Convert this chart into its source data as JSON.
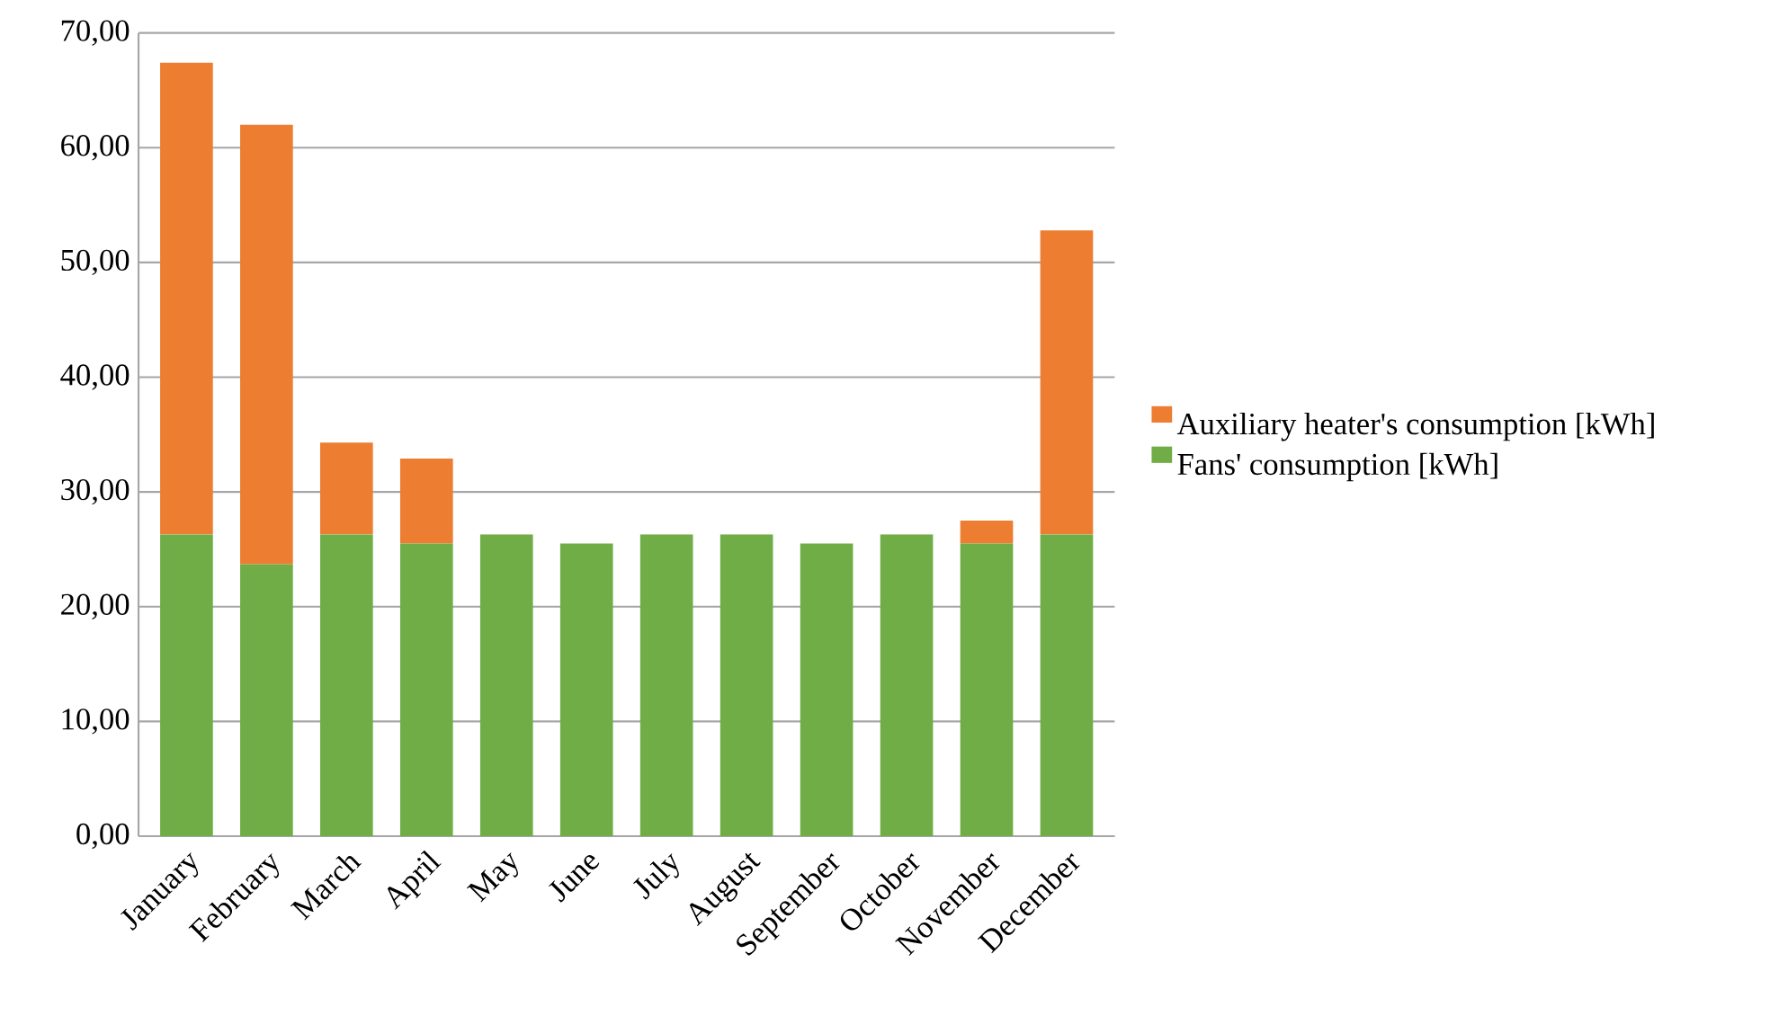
{
  "chart_data": {
    "type": "bar",
    "stacked": true,
    "categories": [
      "January",
      "February",
      "March",
      "April",
      "May",
      "June",
      "July",
      "August",
      "September",
      "October",
      "November",
      "December"
    ],
    "series": [
      {
        "name": "Fans' consumption [kWh]",
        "color": "#70ad47",
        "values": [
          26.3,
          23.7,
          26.3,
          25.5,
          26.3,
          25.5,
          26.3,
          26.3,
          25.5,
          26.3,
          25.5,
          26.3
        ]
      },
      {
        "name": "Auxiliary heater's consumption [kWh]",
        "color": "#ed7d31",
        "values": [
          41.1,
          38.3,
          8.0,
          7.4,
          0,
          0,
          0,
          0,
          0,
          0,
          2.0,
          26.5
        ]
      }
    ],
    "ylim": [
      0,
      70
    ],
    "yticks": [
      {
        "value": 0,
        "label": "0,00"
      },
      {
        "value": 10,
        "label": "10,00"
      },
      {
        "value": 20,
        "label": "20,00"
      },
      {
        "value": 30,
        "label": "30,00"
      },
      {
        "value": 40,
        "label": "40,00"
      },
      {
        "value": 50,
        "label": "50,00"
      },
      {
        "value": 60,
        "label": "60,00"
      },
      {
        "value": 70,
        "label": "70,00"
      }
    ],
    "grid": "y",
    "legend": "right"
  }
}
